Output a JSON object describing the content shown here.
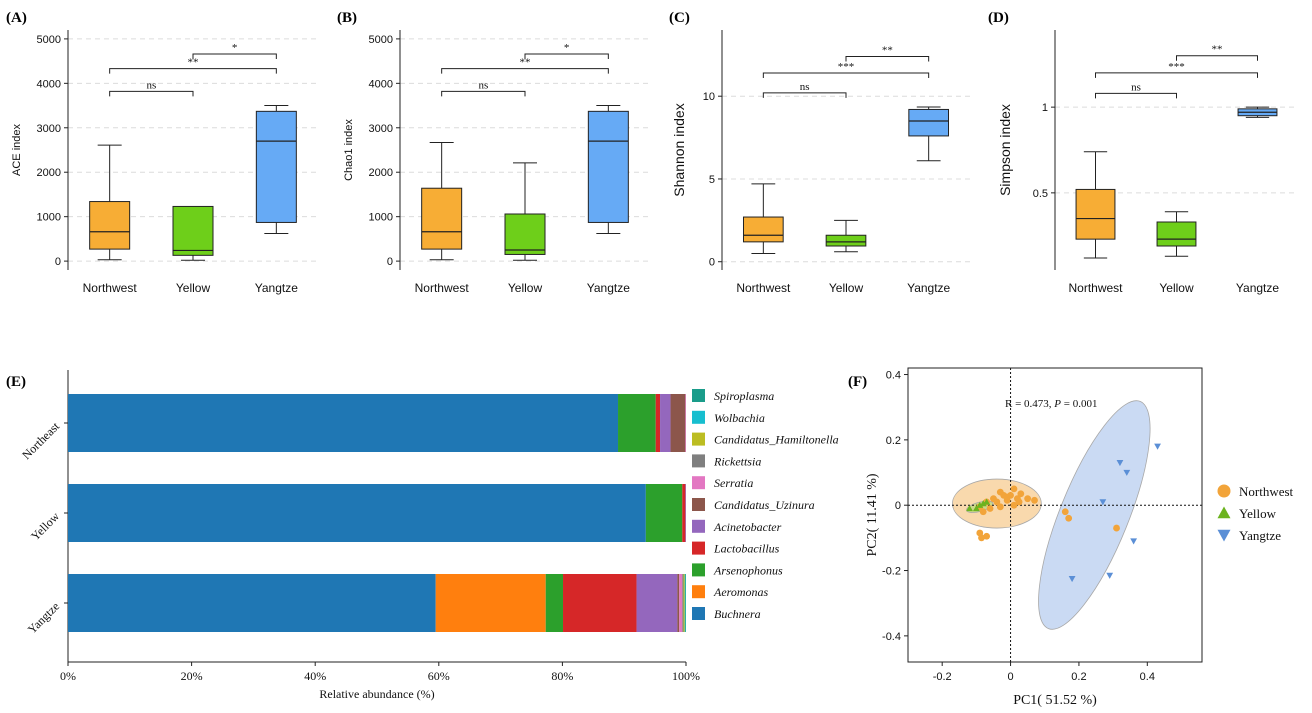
{
  "figure": {
    "panel_labels": [
      "(A)",
      "(B)",
      "(C)",
      "(D)",
      "(E)",
      "(F)"
    ]
  },
  "chart_data": [
    {
      "id": "A",
      "type": "box",
      "label": "(A)",
      "ylabel": "ACE index",
      "ylim": [
        -200,
        5200
      ],
      "yticks": [
        0,
        1000,
        2000,
        3000,
        4000,
        5000
      ],
      "grid": [
        0,
        1000,
        2000,
        3000,
        4000,
        5000
      ],
      "categories": [
        "Northwest",
        "Yellow",
        "Yangtze"
      ],
      "colors": [
        "#f7ad35",
        "#6ecf1a",
        "#66aaf5"
      ],
      "boxes": [
        {
          "min": 30,
          "q1": 270,
          "median": 660,
          "q3": 1340,
          "max": 2610
        },
        {
          "min": 20,
          "q1": 130,
          "median": 240,
          "q3": 1230,
          "max": 1230
        },
        {
          "min": 620,
          "q1": 870,
          "median": 2700,
          "q3": 3370,
          "max": 3500
        }
      ],
      "brackets": [
        {
          "from": 0,
          "to": 1,
          "y": 3820,
          "label": "ns"
        },
        {
          "from": 0,
          "to": 2,
          "y": 4330,
          "label": "**"
        },
        {
          "from": 1,
          "to": 2,
          "y": 4660,
          "label": "*"
        }
      ]
    },
    {
      "id": "B",
      "type": "box",
      "label": "(B)",
      "ylabel": "Chao1 index",
      "ylim": [
        -200,
        5200
      ],
      "yticks": [
        0,
        1000,
        2000,
        3000,
        4000,
        5000
      ],
      "grid": [
        0,
        1000,
        2000,
        3000,
        4000,
        5000
      ],
      "categories": [
        "Northwest",
        "Yellow",
        "Yangtze"
      ],
      "colors": [
        "#f7ad35",
        "#6ecf1a",
        "#66aaf5"
      ],
      "boxes": [
        {
          "min": 30,
          "q1": 270,
          "median": 660,
          "q3": 1640,
          "max": 2670
        },
        {
          "min": 20,
          "q1": 150,
          "median": 250,
          "q3": 1060,
          "max": 2210
        },
        {
          "min": 620,
          "q1": 870,
          "median": 2700,
          "q3": 3370,
          "max": 3500
        }
      ],
      "brackets": [
        {
          "from": 0,
          "to": 1,
          "y": 3820,
          "label": "ns"
        },
        {
          "from": 0,
          "to": 2,
          "y": 4330,
          "label": "**"
        },
        {
          "from": 1,
          "to": 2,
          "y": 4660,
          "label": "*"
        }
      ]
    },
    {
      "id": "C",
      "type": "box",
      "label": "(C)",
      "ylabel": "Shannon index",
      "ylim": [
        -0.5,
        14
      ],
      "yticks": [
        0,
        5,
        10
      ],
      "grid": [
        0,
        5,
        10,
        15
      ],
      "categories": [
        "Northwest",
        "Yellow",
        "Yangtze"
      ],
      "colors": [
        "#f7ad35",
        "#6ecf1a",
        "#66aaf5"
      ],
      "boxes": [
        {
          "min": 0.5,
          "q1": 1.2,
          "median": 1.6,
          "q3": 2.7,
          "max": 4.7
        },
        {
          "min": 0.6,
          "q1": 0.95,
          "median": 1.2,
          "q3": 1.6,
          "max": 2.5
        },
        {
          "min": 6.1,
          "q1": 7.6,
          "median": 8.5,
          "q3": 9.2,
          "max": 9.35
        }
      ],
      "brackets": [
        {
          "from": 0,
          "to": 1,
          "y": 10.2,
          "label": "ns"
        },
        {
          "from": 0,
          "to": 2,
          "y": 11.4,
          "label": "***"
        },
        {
          "from": 1,
          "to": 2,
          "y": 12.4,
          "label": "**"
        }
      ]
    },
    {
      "id": "D",
      "type": "box",
      "label": "(D)",
      "ylabel": "Simpson index",
      "ylim": [
        0.05,
        1.45
      ],
      "yticks": [
        0.5,
        1
      ],
      "ytick_labels": [
        "0.5",
        "1"
      ],
      "grid": [
        0.5,
        1
      ],
      "categories": [
        "Northwest",
        "Yellow",
        "Yangtze"
      ],
      "colors": [
        "#f7ad35",
        "#6ecf1a",
        "#66aaf5"
      ],
      "boxes": [
        {
          "min": 0.12,
          "q1": 0.23,
          "median": 0.35,
          "q3": 0.52,
          "max": 0.74
        },
        {
          "min": 0.13,
          "q1": 0.19,
          "median": 0.23,
          "q3": 0.33,
          "max": 0.39
        },
        {
          "min": 0.94,
          "q1": 0.95,
          "median": 0.97,
          "q3": 0.99,
          "max": 1.0
        }
      ],
      "brackets": [
        {
          "from": 0,
          "to": 1,
          "y": 1.08,
          "label": "ns"
        },
        {
          "from": 0,
          "to": 2,
          "y": 1.2,
          "label": "***"
        },
        {
          "from": 1,
          "to": 2,
          "y": 1.3,
          "label": "**"
        }
      ]
    },
    {
      "id": "E",
      "type": "stacked-bar-horizontal",
      "label": "(E)",
      "xlabel": "Relative abundance (%)",
      "xlim": [
        0,
        100
      ],
      "xticks": [
        0,
        20,
        40,
        60,
        80,
        100
      ],
      "xtick_labels": [
        "0%",
        "20%",
        "40%",
        "60%",
        "80%",
        "100%"
      ],
      "categories": [
        "Northeast",
        "Yellow",
        "Yangtze"
      ],
      "stack_order": [
        "Buchnera",
        "Aeromonas",
        "Arsenophonus",
        "Lactobacillus",
        "Acinetobacter",
        "Candidatus_Uzinura",
        "Serratia",
        "Rickettsia",
        "Candidatus_Hamiltonella",
        "Wolbachia",
        "Spiroplasma"
      ],
      "series": [
        {
          "name": "Buchnera",
          "color": "#1f77b4",
          "values": [
            89.0,
            93.5,
            59.5
          ]
        },
        {
          "name": "Aeromonas",
          "color": "#ff7f0e",
          "values": [
            0.0,
            0.0,
            17.8
          ]
        },
        {
          "name": "Arsenophonus",
          "color": "#2ca02c",
          "values": [
            6.1,
            5.9,
            2.8
          ]
        },
        {
          "name": "Lactobacillus",
          "color": "#d62728",
          "values": [
            0.7,
            0.5,
            11.9
          ]
        },
        {
          "name": "Acinetobacter",
          "color": "#9467bd",
          "values": [
            1.7,
            0.1,
            6.6
          ]
        },
        {
          "name": "Candidatus_Uzinura",
          "color": "#8c564b",
          "values": [
            2.4,
            0.0,
            0.3
          ]
        },
        {
          "name": "Serratia",
          "color": "#e377c2",
          "values": [
            0.1,
            0.0,
            0.5
          ]
        },
        {
          "name": "Rickettsia",
          "color": "#7f7f7f",
          "values": [
            0.0,
            0.0,
            0.2
          ]
        },
        {
          "name": "Candidatus_Hamiltonella",
          "color": "#bcbd22",
          "values": [
            0.0,
            0.0,
            0.2
          ]
        },
        {
          "name": "Wolbachia",
          "color": "#17becf",
          "values": [
            0.0,
            0.0,
            0.1
          ]
        },
        {
          "name": "Spiroplasma",
          "color": "#1a9c8a",
          "values": [
            0.0,
            0.0,
            0.1
          ]
        }
      ],
      "legend_order": [
        "Spiroplasma",
        "Wolbachia",
        "Candidatus_Hamiltonella",
        "Rickettsia",
        "Serratia",
        "Candidatus_Uzinura",
        "Acinetobacter",
        "Lactobacillus",
        "Arsenophonus",
        "Aeromonas",
        "Buchnera"
      ]
    },
    {
      "id": "F",
      "type": "scatter",
      "label": "(F)",
      "xlabel": "PC1( 51.52 %)",
      "ylabel": "PC2( 11.41 %)",
      "annotation": "R = 0.473, P = 0.001",
      "annotation_parts": [
        "R = 0.473, ",
        "P",
        " = 0.001"
      ],
      "xlim": [
        -0.3,
        0.56
      ],
      "ylim": [
        -0.48,
        0.42
      ],
      "xticks": [
        -0.2,
        0,
        0.2,
        0.4
      ],
      "xtick_labels": [
        "-0.2",
        "0",
        "0.2",
        "0.4"
      ],
      "yticks": [
        -0.4,
        -0.2,
        0,
        0.2,
        0.4
      ],
      "ytick_labels": [
        "-0.4",
        "-0.2",
        "0",
        "0.2",
        "0.4"
      ],
      "series": [
        {
          "name": "Northwest",
          "marker": "circle",
          "color": "#f2a43a",
          "ellipse": {
            "cx": -0.04,
            "cy": 0.005,
            "rx": 0.13,
            "ry": 0.075,
            "angle": 0,
            "fill": "#f7c98a"
          },
          "points": [
            [
              -0.03,
              0.04
            ],
            [
              0.01,
              0.05
            ],
            [
              0.03,
              0.035
            ],
            [
              0.05,
              0.02
            ],
            [
              0.07,
              0.015
            ],
            [
              -0.05,
              0.02
            ],
            [
              -0.02,
              0.03
            ],
            [
              0.0,
              0.03
            ],
            [
              0.02,
              0.02
            ],
            [
              -0.07,
              0.01
            ],
            [
              -0.04,
              0.01
            ],
            [
              -0.01,
              0.015
            ],
            [
              0.01,
              0.0
            ],
            [
              -0.03,
              -0.005
            ],
            [
              -0.06,
              -0.01
            ],
            [
              -0.09,
              -0.005
            ],
            [
              -0.08,
              -0.02
            ],
            [
              -0.09,
              -0.085
            ],
            [
              -0.085,
              -0.1
            ],
            [
              -0.07,
              -0.095
            ],
            [
              0.16,
              -0.02
            ],
            [
              0.17,
              -0.04
            ],
            [
              0.31,
              -0.07
            ],
            [
              -0.01,
              0.025
            ],
            [
              0.025,
              0.01
            ]
          ]
        },
        {
          "name": "Yellow",
          "marker": "triangle-up",
          "color": "#6cb31f",
          "ellipse": {
            "cx": -0.09,
            "cy": -0.005,
            "rx": 0.04,
            "ry": 0.014,
            "angle": -15,
            "fill": "#b6d77a"
          },
          "points": [
            [
              -0.12,
              -0.01
            ],
            [
              -0.1,
              -0.01
            ],
            [
              -0.09,
              0.0
            ],
            [
              -0.08,
              0.005
            ],
            [
              -0.07,
              0.01
            ]
          ]
        },
        {
          "name": "Yangtze",
          "marker": "triangle-down",
          "color": "#5b8fd6",
          "ellipse": {
            "cx": 0.245,
            "cy": -0.03,
            "rx": 0.1,
            "ry": 0.375,
            "angle": 22,
            "fill": "#b4cbee"
          },
          "points": [
            [
              0.43,
              0.18
            ],
            [
              0.32,
              0.13
            ],
            [
              0.34,
              0.1
            ],
            [
              0.27,
              0.01
            ],
            [
              0.36,
              -0.11
            ],
            [
              0.29,
              -0.215
            ],
            [
              0.18,
              -0.225
            ]
          ]
        }
      ],
      "legend_order": [
        "Northwest",
        "Yellow",
        "Yangtze"
      ]
    }
  ]
}
